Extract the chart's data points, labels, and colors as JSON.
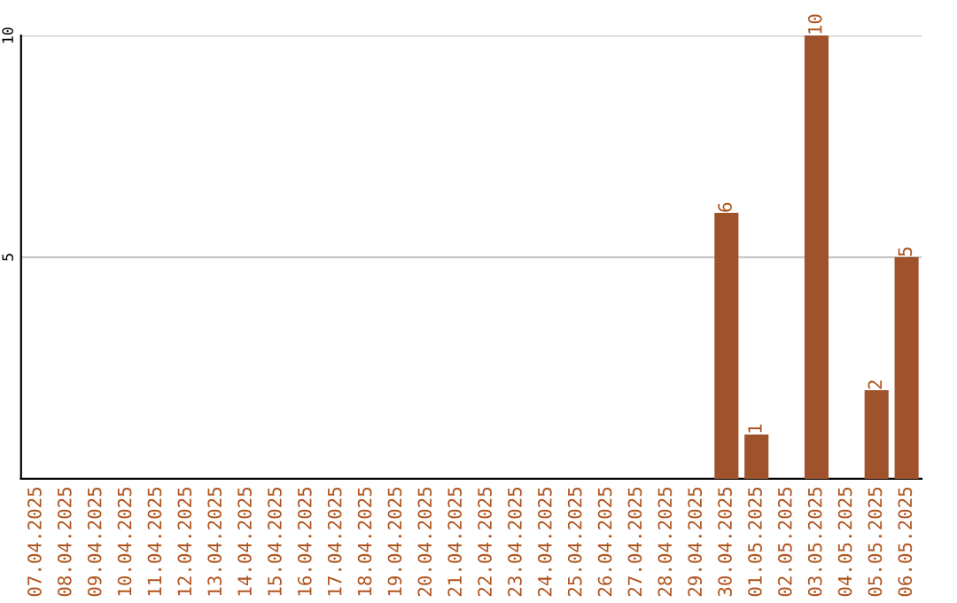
{
  "chart_data": {
    "type": "bar",
    "categories": [
      "07.04.2025",
      "08.04.2025",
      "09.04.2025",
      "10.04.2025",
      "11.04.2025",
      "12.04.2025",
      "13.04.2025",
      "14.04.2025",
      "15.04.2025",
      "16.04.2025",
      "17.04.2025",
      "18.04.2025",
      "19.04.2025",
      "20.04.2025",
      "21.04.2025",
      "22.04.2025",
      "23.04.2025",
      "24.04.2025",
      "25.04.2025",
      "26.04.2025",
      "27.04.2025",
      "28.04.2025",
      "29.04.2025",
      "30.04.2025",
      "01.05.2025",
      "02.05.2025",
      "03.05.2025",
      "04.05.2025",
      "05.05.2025",
      "06.05.2025"
    ],
    "values": [
      0,
      0,
      0,
      0,
      0,
      0,
      0,
      0,
      0,
      0,
      0,
      0,
      0,
      0,
      0,
      0,
      0,
      0,
      0,
      0,
      0,
      0,
      0,
      6,
      1,
      0,
      10,
      0,
      2,
      5
    ],
    "value_labels": [
      null,
      null,
      null,
      null,
      null,
      null,
      null,
      null,
      null,
      null,
      null,
      null,
      null,
      null,
      null,
      null,
      null,
      null,
      null,
      null,
      null,
      null,
      null,
      "6",
      "1",
      null,
      "10",
      null,
      "2",
      "5"
    ],
    "color": "#a0522d",
    "ylim": [
      0,
      10
    ],
    "yticks": [
      5,
      10
    ],
    "grid": "y"
  }
}
